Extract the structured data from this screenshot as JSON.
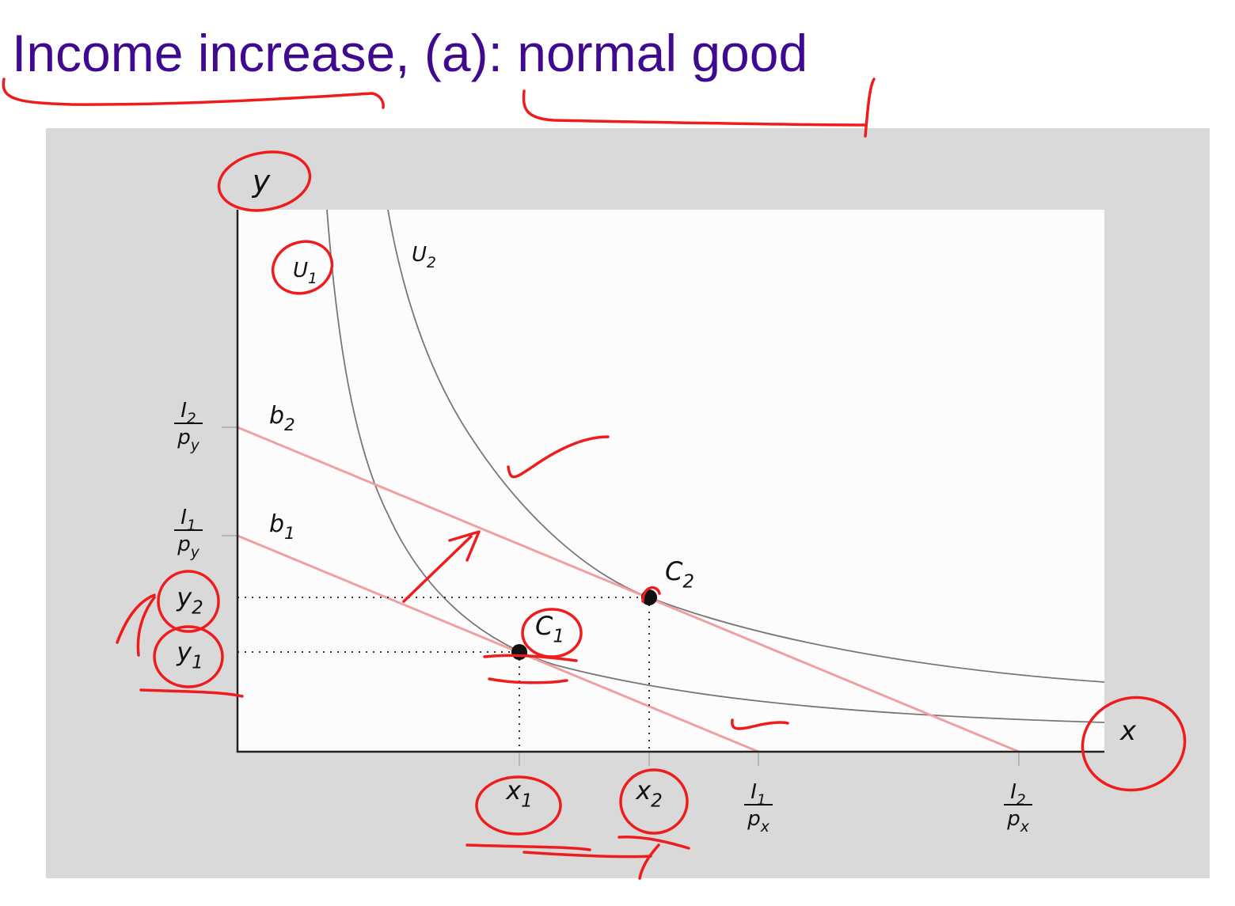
{
  "title": "Income increase, (a): normal good",
  "axes": {
    "y": "y",
    "x": "x"
  },
  "curves": [
    {
      "base": "U",
      "sub": "1"
    },
    {
      "base": "U",
      "sub": "2"
    }
  ],
  "budget_lines": [
    {
      "base": "b",
      "sub": "1"
    },
    {
      "base": "b",
      "sub": "2"
    }
  ],
  "points": [
    {
      "base": "C",
      "sub": "1"
    },
    {
      "base": "C",
      "sub": "2"
    }
  ],
  "y_axis_labels": [
    {
      "num": {
        "base": "I",
        "sub": "2"
      },
      "den": {
        "base": "p",
        "sub": "y"
      }
    },
    {
      "num": {
        "base": "I",
        "sub": "1"
      },
      "den": {
        "base": "p",
        "sub": "y"
      }
    },
    {
      "base": "y",
      "sub": "2"
    },
    {
      "base": "y",
      "sub": "1"
    }
  ],
  "x_axis_labels": [
    {
      "base": "x",
      "sub": "1"
    },
    {
      "base": "x",
      "sub": "2"
    },
    {
      "num": {
        "base": "I",
        "sub": "1"
      },
      "den": {
        "base": "p",
        "sub": "x"
      }
    },
    {
      "num": {
        "base": "I",
        "sub": "2"
      },
      "den": {
        "base": "p",
        "sub": "x"
      }
    }
  ]
}
